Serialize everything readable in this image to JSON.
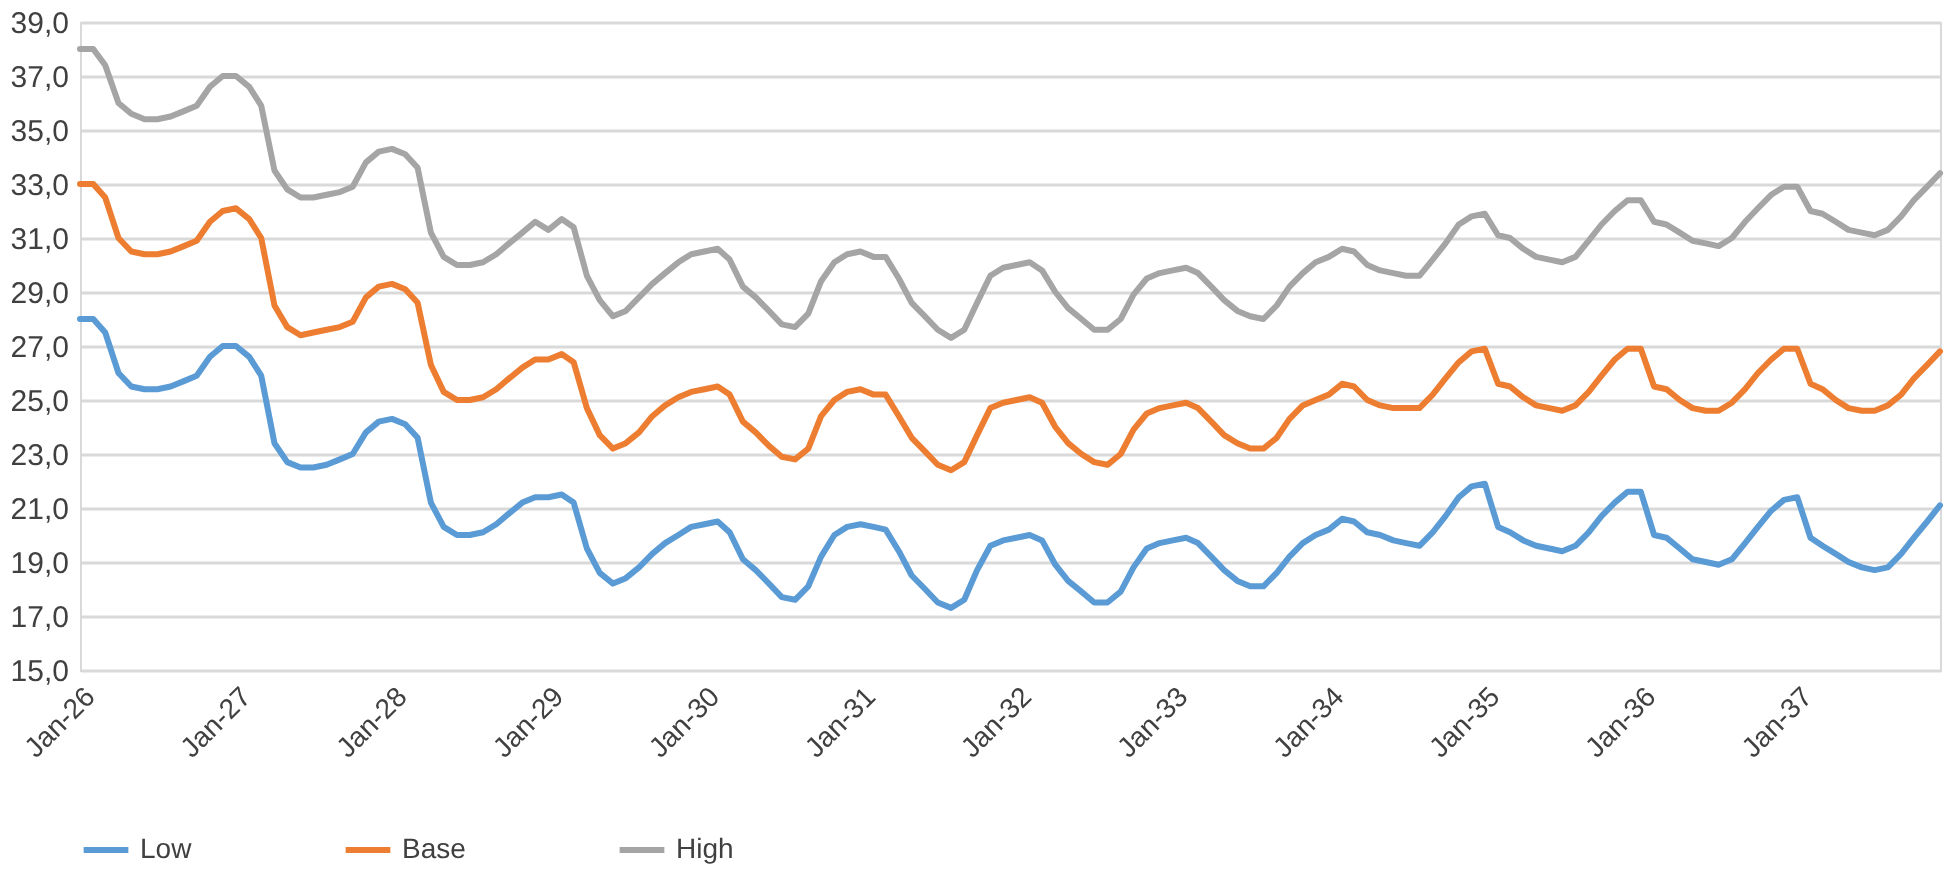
{
  "chart_data": {
    "type": "line",
    "x": [
      "2026-01",
      "2026-02",
      "2026-03",
      "2026-04",
      "2026-05",
      "2026-06",
      "2026-07",
      "2026-08",
      "2026-09",
      "2026-10",
      "2026-11",
      "2026-12",
      "2027-01",
      "2027-02",
      "2027-03",
      "2027-04",
      "2027-05",
      "2027-06",
      "2027-07",
      "2027-08",
      "2027-09",
      "2027-10",
      "2027-11",
      "2027-12",
      "2028-01",
      "2028-02",
      "2028-03",
      "2028-04",
      "2028-05",
      "2028-06",
      "2028-07",
      "2028-08",
      "2028-09",
      "2028-10",
      "2028-11",
      "2028-12",
      "2029-01",
      "2029-02",
      "2029-03",
      "2029-04",
      "2029-05",
      "2029-06",
      "2029-07",
      "2029-08",
      "2029-09",
      "2029-10",
      "2029-11",
      "2029-12",
      "2030-01",
      "2030-02",
      "2030-03",
      "2030-04",
      "2030-05",
      "2030-06",
      "2030-07",
      "2030-08",
      "2030-09",
      "2030-10",
      "2030-11",
      "2030-12",
      "2031-01",
      "2031-02",
      "2031-03",
      "2031-04",
      "2031-05",
      "2031-06",
      "2031-07",
      "2031-08",
      "2031-09",
      "2031-10",
      "2031-11",
      "2031-12",
      "2032-01",
      "2032-02",
      "2032-03",
      "2032-04",
      "2032-05",
      "2032-06",
      "2032-07",
      "2032-08",
      "2032-09",
      "2032-10",
      "2032-11",
      "2032-12",
      "2033-01",
      "2033-02",
      "2033-03",
      "2033-04",
      "2033-05",
      "2033-06",
      "2033-07",
      "2033-08",
      "2033-09",
      "2033-10",
      "2033-11",
      "2033-12",
      "2034-01",
      "2034-02",
      "2034-03",
      "2034-04",
      "2034-05",
      "2034-06",
      "2034-07",
      "2034-08",
      "2034-09",
      "2034-10",
      "2034-11",
      "2034-12",
      "2035-01",
      "2035-02",
      "2035-03",
      "2035-04",
      "2035-05",
      "2035-06",
      "2035-07",
      "2035-08",
      "2035-09",
      "2035-10",
      "2035-11",
      "2035-12",
      "2036-01",
      "2036-02",
      "2036-03",
      "2036-04",
      "2036-05",
      "2036-06",
      "2036-07",
      "2036-08",
      "2036-09",
      "2036-10",
      "2036-11",
      "2036-12",
      "2037-01",
      "2037-02",
      "2037-03",
      "2037-04",
      "2037-05",
      "2037-06",
      "2037-07",
      "2037-08",
      "2037-09",
      "2037-10",
      "2037-11",
      "2037-12"
    ],
    "series": [
      {
        "name": "Low",
        "color": "#5b9bd5",
        "values": [
          28.0,
          28.0,
          27.5,
          26.0,
          25.5,
          25.4,
          25.4,
          25.5,
          25.7,
          25.9,
          26.6,
          27.0,
          27.0,
          26.6,
          25.9,
          23.4,
          22.7,
          22.5,
          22.5,
          22.6,
          22.8,
          23.0,
          23.8,
          24.2,
          24.3,
          24.1,
          23.6,
          21.2,
          20.3,
          20.0,
          20.0,
          20.1,
          20.4,
          20.8,
          21.2,
          21.4,
          21.4,
          21.5,
          21.2,
          19.5,
          18.6,
          18.2,
          18.4,
          18.8,
          19.3,
          19.7,
          20.0,
          20.3,
          20.4,
          20.5,
          20.1,
          19.1,
          18.7,
          18.2,
          17.7,
          17.6,
          18.1,
          19.2,
          20.0,
          20.3,
          20.4,
          20.3,
          20.2,
          19.4,
          18.5,
          18.0,
          17.5,
          17.3,
          17.6,
          18.7,
          19.6,
          19.8,
          19.9,
          20.0,
          19.8,
          18.9,
          18.3,
          17.9,
          17.5,
          17.5,
          17.9,
          18.8,
          19.5,
          19.7,
          19.8,
          19.9,
          19.7,
          19.2,
          18.7,
          18.3,
          18.1,
          18.1,
          18.6,
          19.2,
          19.7,
          20.0,
          20.2,
          20.6,
          20.5,
          20.1,
          20.0,
          19.8,
          19.7,
          19.6,
          20.1,
          20.7,
          21.4,
          21.8,
          21.9,
          20.3,
          20.1,
          19.8,
          19.6,
          19.5,
          19.4,
          19.6,
          20.1,
          20.7,
          21.2,
          21.6,
          21.6,
          20.0,
          19.9,
          19.5,
          19.1,
          19.0,
          18.9,
          19.1,
          19.7,
          20.3,
          20.9,
          21.3,
          21.4,
          19.9,
          19.6,
          19.3,
          19.0,
          18.8,
          18.7,
          18.8,
          19.3,
          19.9,
          20.5,
          21.1
        ]
      },
      {
        "name": "Base",
        "color": "#ed7d31",
        "values": [
          33.0,
          33.0,
          32.5,
          31.0,
          30.5,
          30.4,
          30.4,
          30.5,
          30.7,
          30.9,
          31.6,
          32.0,
          32.1,
          31.7,
          31.0,
          28.5,
          27.7,
          27.4,
          27.5,
          27.6,
          27.7,
          27.9,
          28.8,
          29.2,
          29.3,
          29.1,
          28.6,
          26.3,
          25.3,
          25.0,
          25.0,
          25.1,
          25.4,
          25.8,
          26.2,
          26.5,
          26.5,
          26.7,
          26.4,
          24.7,
          23.7,
          23.2,
          23.4,
          23.8,
          24.4,
          24.8,
          25.1,
          25.3,
          25.4,
          25.5,
          25.2,
          24.2,
          23.8,
          23.3,
          22.9,
          22.8,
          23.2,
          24.4,
          25.0,
          25.3,
          25.4,
          25.2,
          25.2,
          24.4,
          23.6,
          23.1,
          22.6,
          22.4,
          22.7,
          23.7,
          24.7,
          24.9,
          25.0,
          25.1,
          24.9,
          24.0,
          23.4,
          23.0,
          22.7,
          22.6,
          23.0,
          23.9,
          24.5,
          24.7,
          24.8,
          24.9,
          24.7,
          24.2,
          23.7,
          23.4,
          23.2,
          23.2,
          23.6,
          24.3,
          24.8,
          25.0,
          25.2,
          25.6,
          25.5,
          25.0,
          24.8,
          24.7,
          24.7,
          24.7,
          25.2,
          25.8,
          26.4,
          26.8,
          26.9,
          25.6,
          25.5,
          25.1,
          24.8,
          24.7,
          24.6,
          24.8,
          25.3,
          25.9,
          26.5,
          26.9,
          26.9,
          25.5,
          25.4,
          25.0,
          24.7,
          24.6,
          24.6,
          24.9,
          25.4,
          26.0,
          26.5,
          26.9,
          26.9,
          25.6,
          25.4,
          25.0,
          24.7,
          24.6,
          24.6,
          24.8,
          25.2,
          25.8,
          26.3,
          26.8
        ]
      },
      {
        "name": "High",
        "color": "#a5a5a5",
        "values": [
          38.0,
          38.0,
          37.4,
          36.0,
          35.6,
          35.4,
          35.4,
          35.5,
          35.7,
          35.9,
          36.6,
          37.0,
          37.0,
          36.6,
          35.9,
          33.5,
          32.8,
          32.5,
          32.5,
          32.6,
          32.7,
          32.9,
          33.8,
          34.2,
          34.3,
          34.1,
          33.6,
          31.2,
          30.3,
          30.0,
          30.0,
          30.1,
          30.4,
          30.8,
          31.2,
          31.6,
          31.3,
          31.7,
          31.4,
          29.6,
          28.7,
          28.1,
          28.3,
          28.8,
          29.3,
          29.7,
          30.1,
          30.4,
          30.5,
          30.6,
          30.2,
          29.2,
          28.8,
          28.3,
          27.8,
          27.7,
          28.2,
          29.4,
          30.1,
          30.4,
          30.5,
          30.3,
          30.3,
          29.5,
          28.6,
          28.1,
          27.6,
          27.3,
          27.6,
          28.6,
          29.6,
          29.9,
          30.0,
          30.1,
          29.8,
          29.0,
          28.4,
          28.0,
          27.6,
          27.6,
          28.0,
          28.9,
          29.5,
          29.7,
          29.8,
          29.9,
          29.7,
          29.2,
          28.7,
          28.3,
          28.1,
          28.0,
          28.5,
          29.2,
          29.7,
          30.1,
          30.3,
          30.6,
          30.5,
          30.0,
          29.8,
          29.7,
          29.6,
          29.6,
          30.2,
          30.8,
          31.5,
          31.8,
          31.9,
          31.1,
          31.0,
          30.6,
          30.3,
          30.2,
          30.1,
          30.3,
          30.9,
          31.5,
          32.0,
          32.4,
          32.4,
          31.6,
          31.5,
          31.2,
          30.9,
          30.8,
          30.7,
          31.0,
          31.6,
          32.1,
          32.6,
          32.9,
          32.9,
          32.0,
          31.9,
          31.6,
          31.3,
          31.2,
          31.1,
          31.3,
          31.8,
          32.4,
          32.9,
          33.4
        ]
      }
    ],
    "xlim": [
      "2026-01",
      "2037-12"
    ],
    "xticks": [
      {
        "value": "2026-01",
        "label": "Jan-26"
      },
      {
        "value": "2027-01",
        "label": "Jan-27"
      },
      {
        "value": "2028-01",
        "label": "Jan-28"
      },
      {
        "value": "2029-01",
        "label": "Jan-29"
      },
      {
        "value": "2030-01",
        "label": "Jan-30"
      },
      {
        "value": "2031-01",
        "label": "Jan-31"
      },
      {
        "value": "2032-01",
        "label": "Jan-32"
      },
      {
        "value": "2033-01",
        "label": "Jan-33"
      },
      {
        "value": "2034-01",
        "label": "Jan-34"
      },
      {
        "value": "2035-01",
        "label": "Jan-35"
      },
      {
        "value": "2036-01",
        "label": "Jan-36"
      },
      {
        "value": "2037-01",
        "label": "Jan-37"
      }
    ],
    "ylim": [
      15,
      39
    ],
    "yticks": [
      {
        "value": 15,
        "label": "15,0"
      },
      {
        "value": 17,
        "label": "17,0"
      },
      {
        "value": 19,
        "label": "19,0"
      },
      {
        "value": 21,
        "label": "21,0"
      },
      {
        "value": 23,
        "label": "23,0"
      },
      {
        "value": 25,
        "label": "25,0"
      },
      {
        "value": 27,
        "label": "27,0"
      },
      {
        "value": 29,
        "label": "29,0"
      },
      {
        "value": 31,
        "label": "31,0"
      },
      {
        "value": 33,
        "label": "33,0"
      },
      {
        "value": 35,
        "label": "35,0"
      },
      {
        "value": 37,
        "label": "37,0"
      },
      {
        "value": 39,
        "label": "39,0"
      }
    ],
    "grid": "y",
    "legend": "bottom",
    "marker": "none",
    "line_style": "solid"
  }
}
